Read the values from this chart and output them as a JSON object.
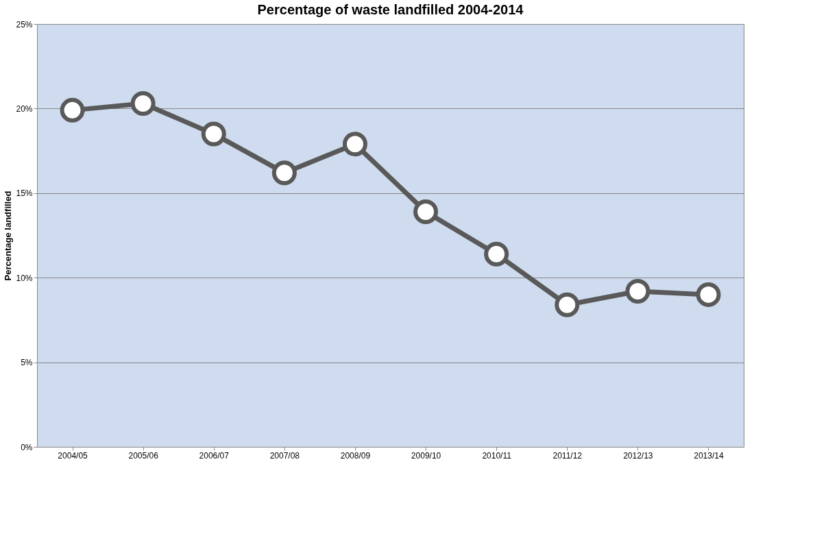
{
  "chart_data": {
    "type": "line",
    "title": "Percentage of waste landfilled 2004-2014",
    "ylabel": "Percentage landfilled",
    "categories": [
      "2004/05",
      "2005/06",
      "2006/07",
      "2007/08",
      "2008/09",
      "2009/10",
      "2010/11",
      "2011/12",
      "2012/13",
      "2013/14"
    ],
    "series": [
      {
        "color": "#595959",
        "values": [
          19.9,
          20.3,
          18.5,
          16.2,
          17.9,
          13.9,
          11.4,
          8.4,
          9.2,
          9.0
        ]
      }
    ],
    "ylim": [
      0,
      25
    ],
    "yticks": [
      {
        "value": 0,
        "label": "0%"
      },
      {
        "value": 5,
        "label": "5%"
      },
      {
        "value": 10,
        "label": "10%"
      },
      {
        "value": 15,
        "label": "15%"
      },
      {
        "value": 20,
        "label": "20%"
      },
      {
        "value": 25,
        "label": "25%"
      }
    ],
    "grid": "y",
    "marker": "circle",
    "line_style": "solid"
  }
}
